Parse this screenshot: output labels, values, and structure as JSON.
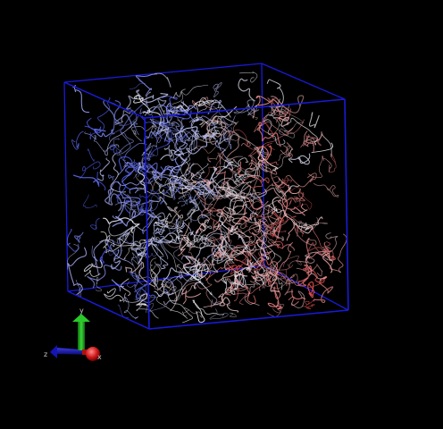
{
  "viewer": {
    "background_color": "#000000",
    "box_color": "#1a1ad8",
    "filament_colors": {
      "blue": "#4a58e0",
      "white": "#e6e6ea",
      "red": "#d84a4a"
    }
  },
  "axes": {
    "x": {
      "label": "x",
      "color": "#e01818"
    },
    "y": {
      "label": "y",
      "color": "#18b018"
    },
    "z": {
      "label": "z",
      "color": "#1818c8"
    }
  }
}
